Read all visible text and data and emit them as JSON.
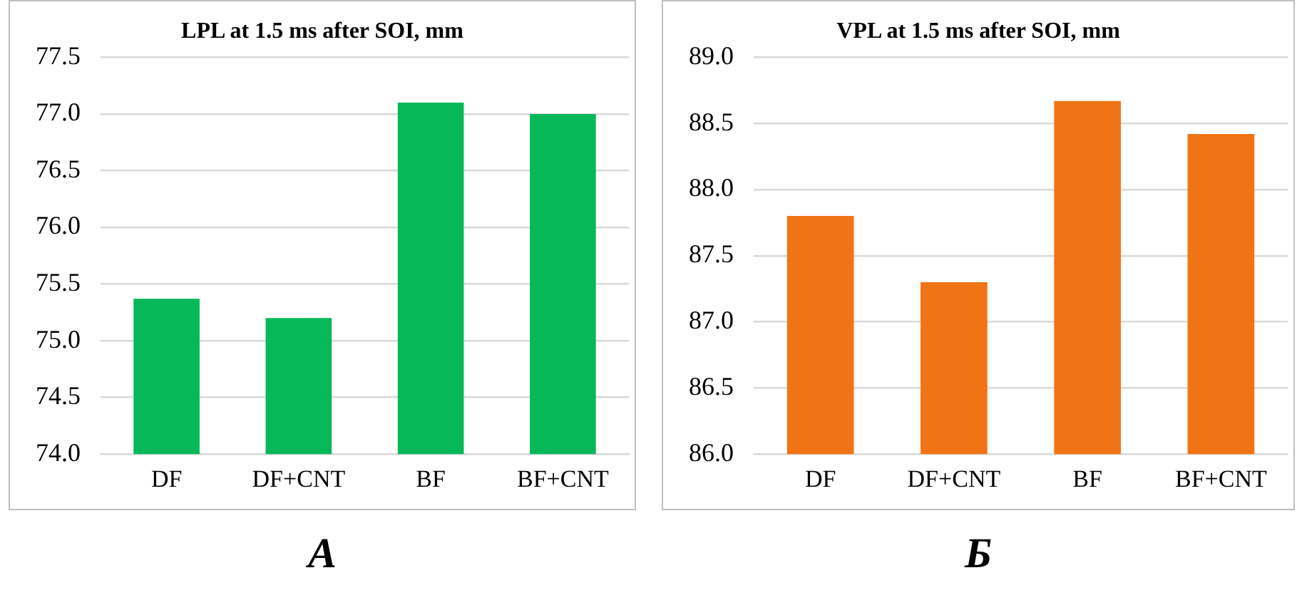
{
  "chart_data": [
    {
      "type": "bar",
      "title": "LPL at 1.5 ms after SOI, mm",
      "categories": [
        "DF",
        "DF+CNT",
        "BF",
        "BF+CNT"
      ],
      "values": [
        75.37,
        75.2,
        77.1,
        77.0
      ],
      "color": "#07b859",
      "ylim": [
        74,
        77.5
      ],
      "yticks": [
        {
          "value": 74,
          "label": "74.0"
        },
        74.5,
        {
          "value": 75,
          "label": "75.0"
        },
        75.5,
        {
          "value": 76,
          "label": "76.0"
        },
        76.5,
        {
          "value": 77,
          "label": "77.0"
        },
        77.5
      ],
      "grid": "y",
      "annotations": [
        "А"
      ]
    },
    {
      "type": "bar",
      "title": "VPL at 1.5 ms after SOI, mm",
      "categories": [
        "DF",
        "DF+CNT",
        "BF",
        "BF+CNT"
      ],
      "values": [
        87.8,
        87.3,
        88.67,
        88.42
      ],
      "color": "#f07415",
      "ylim": [
        86,
        89
      ],
      "yticks": [
        {
          "value": 86,
          "label": "86.0"
        },
        86.5,
        {
          "value": 87,
          "label": "87.0"
        },
        87.5,
        {
          "value": 88,
          "label": "88.0"
        },
        88.5,
        {
          "value": 89,
          "label": "89.0"
        }
      ],
      "grid": "y",
      "annotations": [
        "Б"
      ]
    }
  ]
}
